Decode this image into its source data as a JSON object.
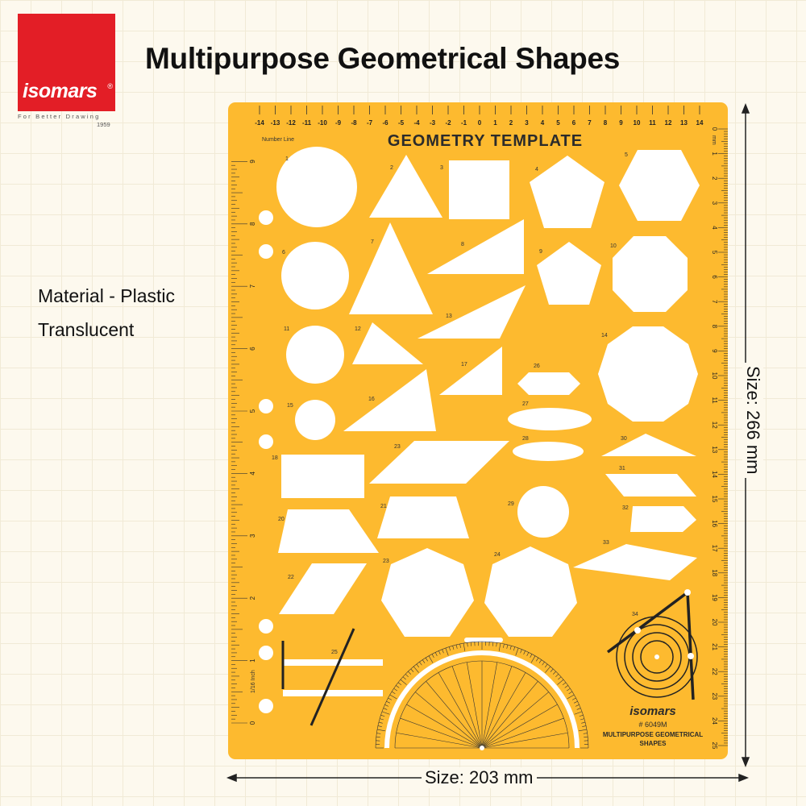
{
  "logo": {
    "brand": "isomars",
    "registered": "®",
    "tagline": "For Better Drawing",
    "year": "1959"
  },
  "title": "Multipurpose Geometrical Shapes",
  "material": {
    "line1": "Material - Plastic",
    "line2": "Translucent"
  },
  "dimensions": {
    "height": "Size: 266 mm",
    "width": "Size: 203 mm"
  },
  "template": {
    "heading": "GEOMETRY TEMPLATE",
    "number_line_label": "Number Line",
    "number_line": [
      "-14",
      "-13",
      "-12",
      "-11",
      "-10",
      "-9",
      "-8",
      "-7",
      "-6",
      "-5",
      "-4",
      "-3",
      "-2",
      "-1",
      "0",
      "1",
      "2",
      "3",
      "4",
      "5",
      "6",
      "7",
      "8",
      "9",
      "10",
      "11",
      "12",
      "13",
      "14"
    ],
    "mm_unit": "mm",
    "mm_ruler": [
      "0",
      "1",
      "2",
      "3",
      "4",
      "5",
      "6",
      "7",
      "8",
      "9",
      "10",
      "11",
      "12",
      "13",
      "14",
      "15",
      "16",
      "17",
      "18",
      "19",
      "20",
      "21",
      "22",
      "23",
      "24",
      "25"
    ],
    "inch_unit": "1/16 Inch",
    "inch_ruler": [
      "0",
      "1",
      "2",
      "3",
      "4",
      "5",
      "6",
      "7",
      "8",
      "9"
    ],
    "shape_numbers": [
      "1",
      "2",
      "3",
      "4",
      "5",
      "6",
      "7",
      "8",
      "9",
      "10",
      "11",
      "12",
      "13",
      "14",
      "15",
      "16",
      "17",
      "18",
      "20",
      "21",
      "22",
      "23",
      "23",
      "24",
      "25",
      "26",
      "27",
      "28",
      "29",
      "30",
      "31",
      "32",
      "33",
      "34"
    ],
    "brand": "isomars",
    "model": "# 6049M",
    "product_line1": "MULTIPURPOSE GEOMETRICAL",
    "product_line2": "SHAPES"
  },
  "colors": {
    "template": "#fdba2f",
    "logo": "#e31e26",
    "cutout": "#ffffff",
    "ink": "#2b2b2b"
  }
}
